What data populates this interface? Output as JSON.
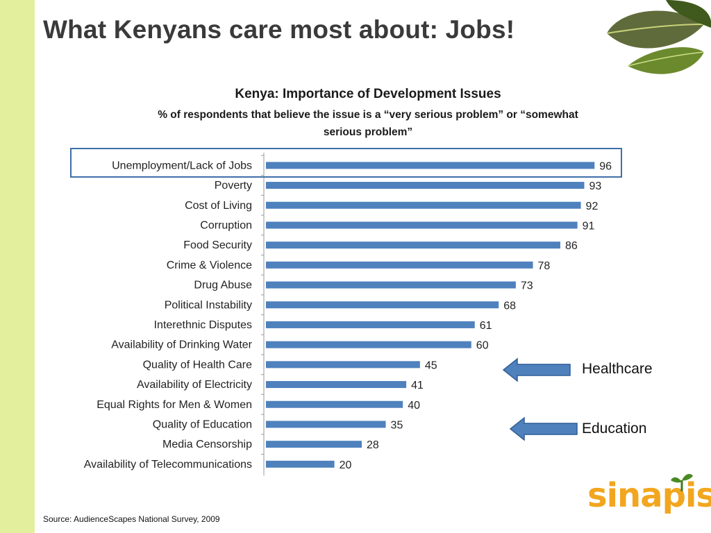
{
  "slide": {
    "title": "What Kenyans care most about: Jobs!",
    "source": "Source: AudienceScapes National Survey, 2009"
  },
  "annotations": {
    "healthcare": "Healthcare",
    "education": "Education"
  },
  "logo": {
    "text": "sinapis"
  },
  "colors": {
    "bar": "#4f81bd",
    "accent_box": "#3e6ea8",
    "side_bar": "#e3ef9c",
    "arrow": "#4f81bd",
    "logo": "#f2a61f"
  },
  "chart_data": {
    "type": "bar",
    "orientation": "horizontal",
    "title": "Kenya: Importance of Development Issues",
    "subtitle": "% of respondents that believe the issue is a “very serious problem” or “somewhat serious problem”",
    "subtitle_line1": "% of respondents that believe the issue is a “very serious problem” or “somewhat",
    "subtitle_line2": "serious problem”",
    "categories": [
      "Unemployment/Lack of Jobs",
      "Poverty",
      "Cost of Living",
      "Corruption",
      "Food Security",
      "Crime & Violence",
      "Drug Abuse",
      "Political Instability",
      "Interethnic Disputes",
      "Availability of Drinking Water",
      "Quality of Health Care",
      "Availability of Electricity",
      "Equal Rights for Men & Women",
      "Quality of Education",
      "Media Censorship",
      "Availability of Telecommunications"
    ],
    "values": [
      96,
      93,
      92,
      91,
      86,
      78,
      73,
      68,
      61,
      60,
      45,
      41,
      40,
      35,
      28,
      20
    ],
    "data_labels": true,
    "grid": false
  }
}
